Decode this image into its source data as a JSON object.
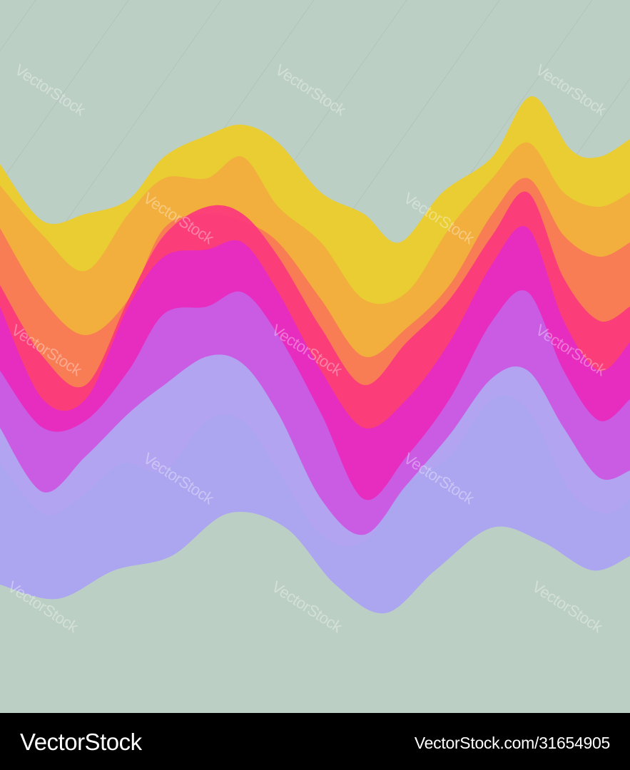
{
  "image": {
    "background_color": "#bccfc5",
    "wave_colors": [
      "#a7a8f1",
      "#b0a8f0",
      "#c85fe6",
      "#e62bc4",
      "#fb3b7b",
      "#f97a55",
      "#f2ad3e",
      "#ebcc2b"
    ]
  },
  "watermark": {
    "text": "VectorStock"
  },
  "footer": {
    "brand": "VectorStock",
    "site_id": "VectorStock.com/31654905",
    "background": "#000000",
    "text_color": "#ffffff"
  }
}
